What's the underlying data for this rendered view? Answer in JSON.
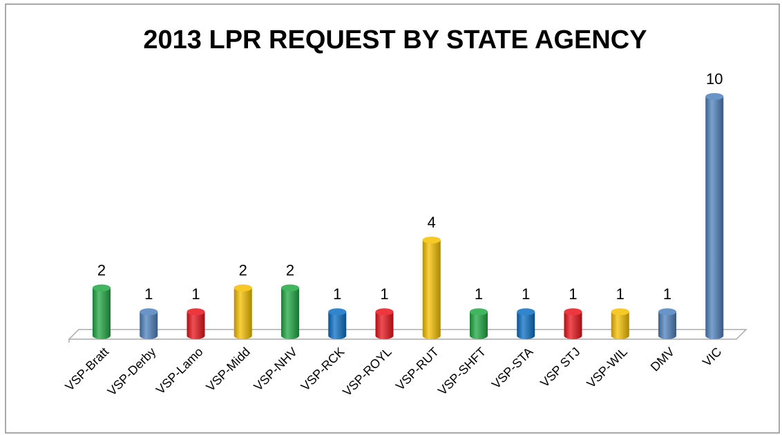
{
  "chart_data": {
    "type": "bar",
    "title": "2013 LPR REQUEST BY STATE AGENCY",
    "categories": [
      "VSP-Bratt",
      "VSP-Derby",
      "VSP-Lamo",
      "VSP-Midd",
      "VSP-NHV",
      "VSP-RCK",
      "VSP-ROYL",
      "VSP-RUT",
      "VSP-SHFT",
      "VSP-STA",
      "VSP STJ",
      "VSP-WIL",
      "DMV",
      "VIC"
    ],
    "values": [
      2,
      1,
      1,
      2,
      2,
      1,
      1,
      4,
      1,
      1,
      1,
      1,
      1,
      10
    ],
    "colors": [
      "#1fa843",
      "#4f81bd",
      "#e8141b",
      "#f5c000",
      "#1fa843",
      "#0b6fc4",
      "#e8141b",
      "#f5c000",
      "#1fa843",
      "#0b6fc4",
      "#e8141b",
      "#f5c000",
      "#4f81bd",
      "#4f81bd"
    ]
  }
}
